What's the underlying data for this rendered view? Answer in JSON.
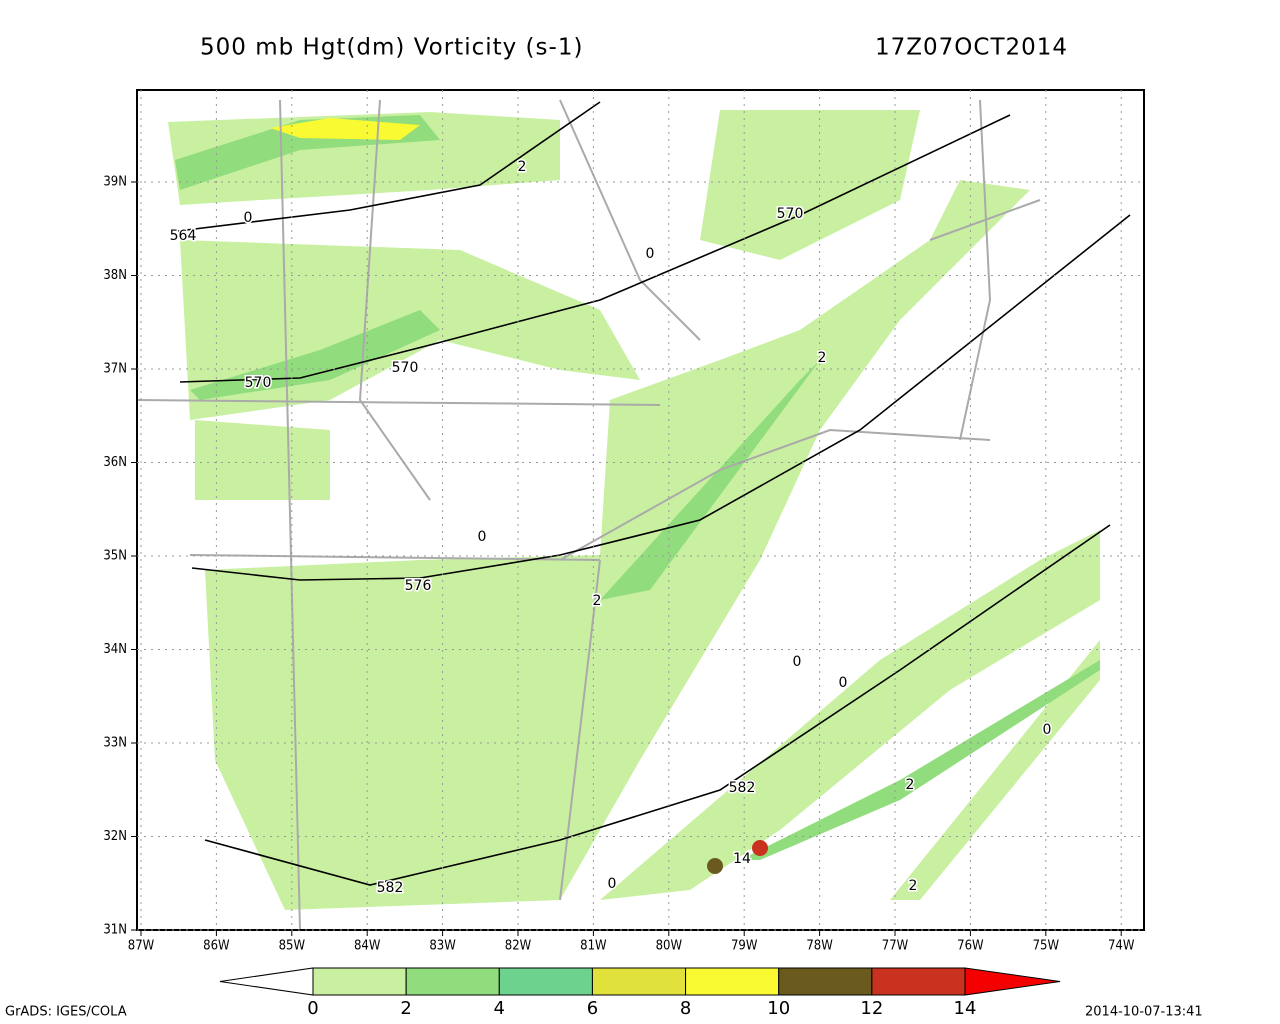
{
  "header": {
    "title": "500 mb Hgt(dm) Vorticity (s-1)",
    "time": "17Z07OCT2014"
  },
  "map": {
    "lon_ticks": [
      {
        "value": -87,
        "label": "87W"
      },
      {
        "value": -86,
        "label": "86W"
      },
      {
        "value": -85,
        "label": "85W"
      },
      {
        "value": -84,
        "label": "84W"
      },
      {
        "value": -83,
        "label": "83W"
      },
      {
        "value": -82,
        "label": "82W"
      },
      {
        "value": -81,
        "label": "81W"
      },
      {
        "value": -80,
        "label": "80W"
      },
      {
        "value": -79,
        "label": "79W"
      },
      {
        "value": -78,
        "label": "78W"
      },
      {
        "value": -77,
        "label": "77W"
      },
      {
        "value": -76,
        "label": "76W"
      },
      {
        "value": -75,
        "label": "75W"
      },
      {
        "value": -74,
        "label": "74W"
      }
    ],
    "lat_ticks": [
      {
        "value": 39,
        "label": "39N"
      },
      {
        "value": 38,
        "label": "38N"
      },
      {
        "value": 37,
        "label": "37N"
      },
      {
        "value": 36,
        "label": "36N"
      },
      {
        "value": 35,
        "label": "35N"
      },
      {
        "value": 34,
        "label": "34N"
      },
      {
        "value": 33,
        "label": "33N"
      },
      {
        "value": 32,
        "label": "32N"
      },
      {
        "value": 31,
        "label": "31N"
      }
    ],
    "contour_labels": [
      "564",
      "570",
      "570",
      "570",
      "576",
      "582",
      "582",
      "0",
      "0",
      "0",
      "0",
      "0",
      "0",
      "0",
      "2",
      "2",
      "2",
      "2",
      "2",
      "14"
    ]
  },
  "colorbar": {
    "levels": [
      0,
      2,
      4,
      6,
      8,
      10,
      12,
      14
    ],
    "colors": [
      "#ffffff",
      "#c8f0a0",
      "#91dc7c",
      "#6ed28f",
      "#e1e13c",
      "#fafa32",
      "#6b5a1e",
      "#c8321e",
      "#f50000"
    ]
  },
  "footer": {
    "left": "GrADS: IGES/COLA",
    "right": "2014-10-07-13:41"
  }
}
